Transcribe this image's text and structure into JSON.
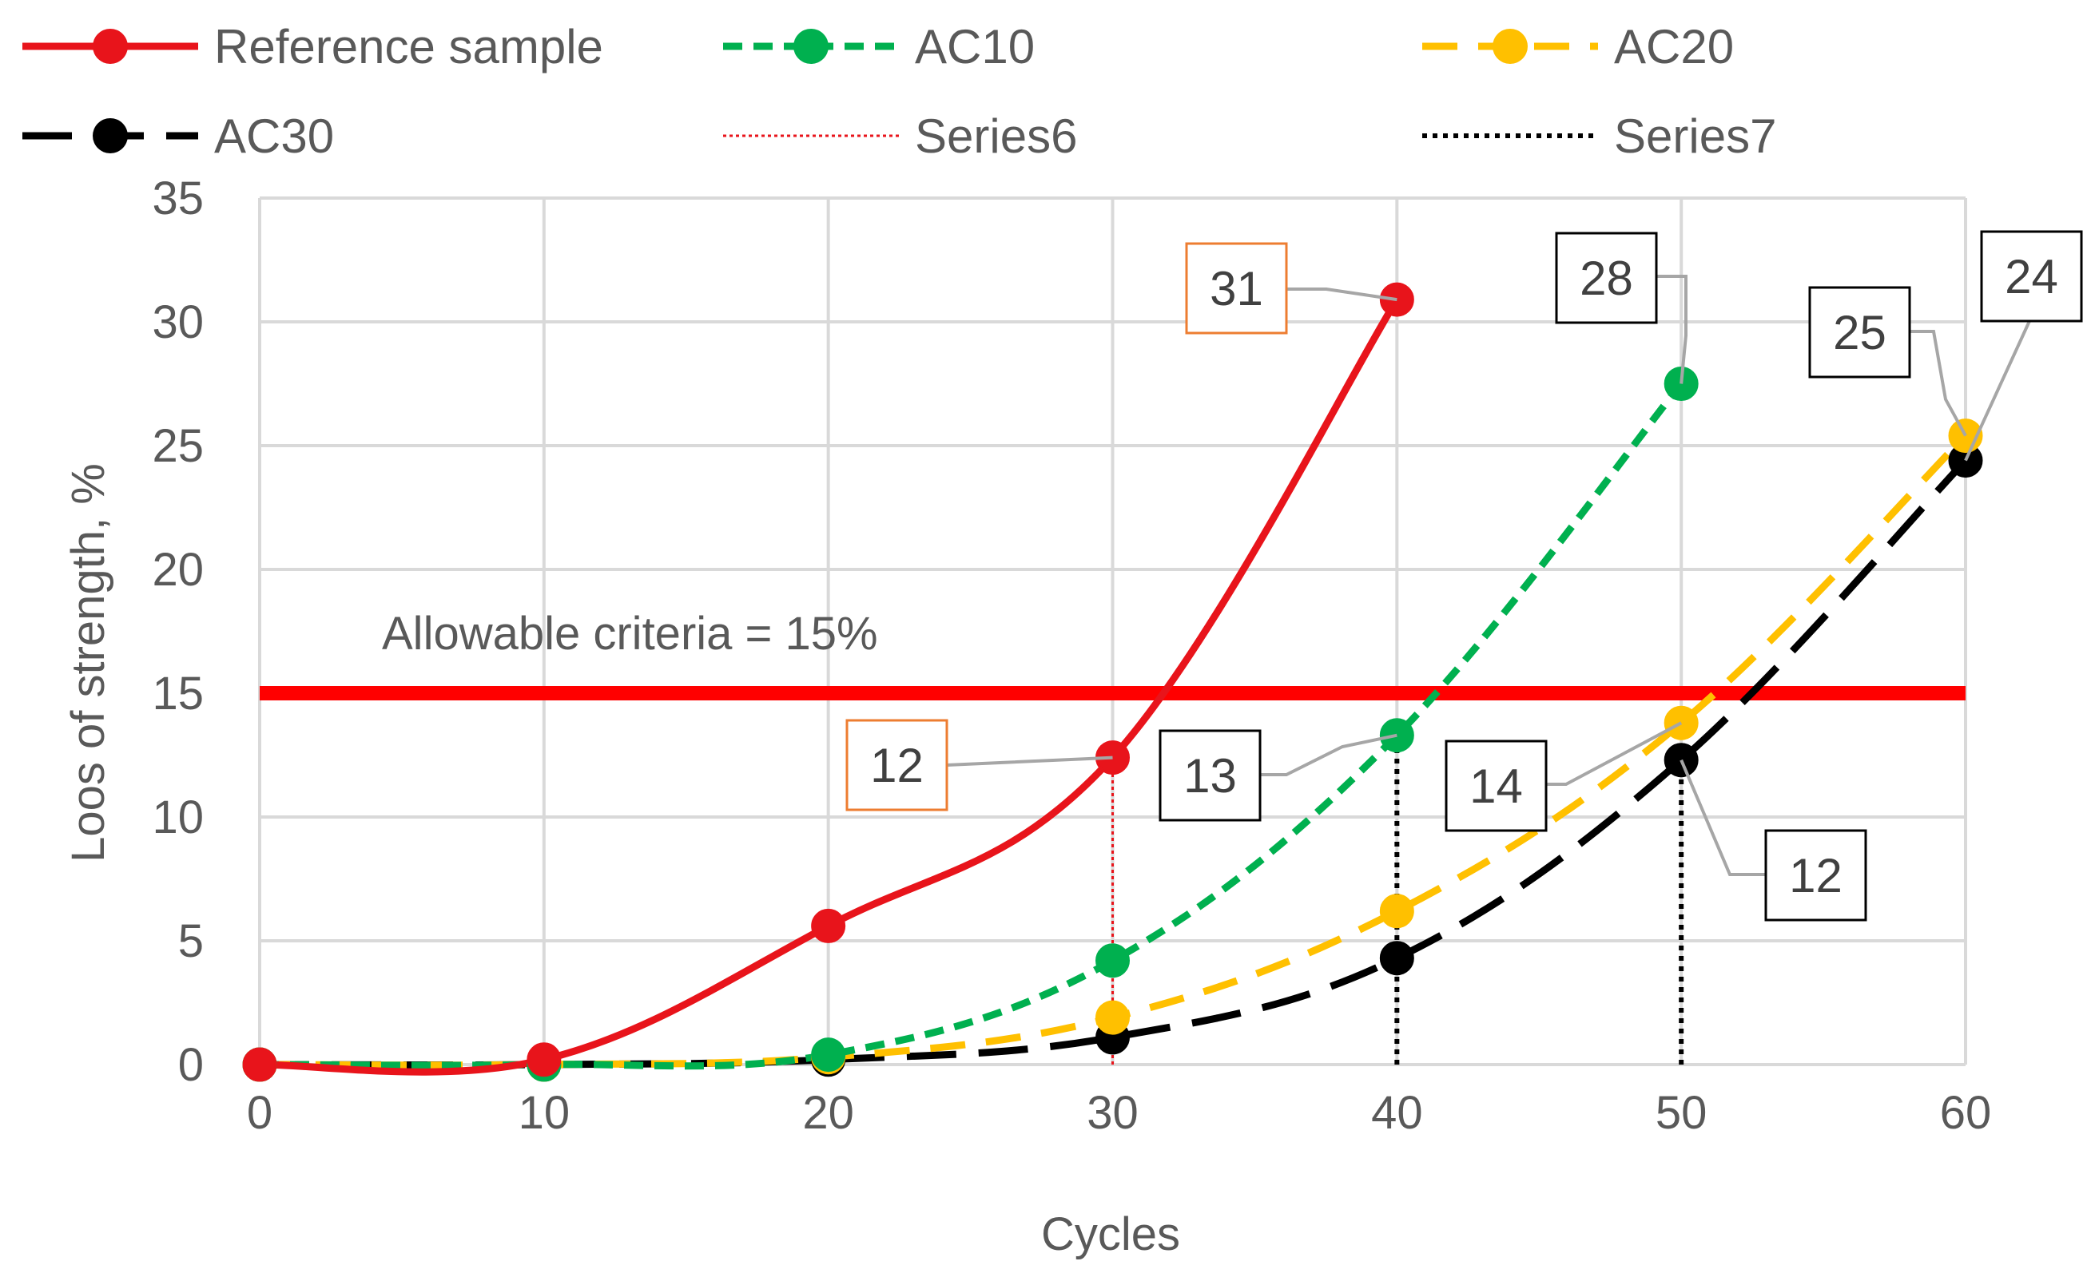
{
  "chart_data": {
    "type": "line",
    "xlabel": "Cycles",
    "ylabel": "Loos of strength, %",
    "xlim": [
      0,
      60
    ],
    "ylim": [
      0,
      35
    ],
    "xticks": [
      0,
      10,
      20,
      30,
      40,
      50,
      60
    ],
    "yticks": [
      0,
      5,
      10,
      15,
      20,
      25,
      30,
      35
    ],
    "grid": true,
    "legend_position": "top",
    "series": [
      {
        "name": "Reference sample",
        "color": "#e8141b",
        "dash": "solid",
        "marker": true,
        "x": [
          0,
          10,
          20,
          30,
          40
        ],
        "values": [
          0,
          0.2,
          5.6,
          12.4,
          30.9
        ]
      },
      {
        "name": "AC10",
        "color": "#00b04f",
        "dash": "short",
        "marker": true,
        "x": [
          0,
          10,
          20,
          30,
          40,
          50
        ],
        "values": [
          0,
          0,
          0.4,
          4.2,
          13.3,
          27.5
        ]
      },
      {
        "name": "AC20",
        "color": "#ffc000",
        "dash": "long",
        "marker": true,
        "x": [
          0,
          10,
          20,
          30,
          40,
          50,
          60
        ],
        "values": [
          0,
          0,
          0.3,
          1.9,
          6.2,
          13.8,
          25.4
        ]
      },
      {
        "name": "AC30",
        "color": "#000000",
        "dash": "longest",
        "marker": true,
        "x": [
          0,
          10,
          20,
          30,
          40,
          50,
          60
        ],
        "values": [
          0,
          0,
          0.2,
          1.1,
          4.3,
          12.3,
          24.4
        ]
      },
      {
        "name": "Series6",
        "color": "#e8141b",
        "dash": "dotted",
        "marker": false,
        "x": [
          30,
          30
        ],
        "values": [
          0,
          12.4
        ]
      },
      {
        "name": "Series7",
        "color": "#000000",
        "dash": "dotted",
        "marker": false,
        "segments": [
          {
            "x": [
              40,
              40
            ],
            "values": [
              0,
              13.3
            ]
          },
          {
            "x": [
              50,
              50
            ],
            "values": [
              0,
              12.3
            ]
          }
        ]
      }
    ],
    "threshold": {
      "value": 15,
      "label": "Allowable criteria = 15%",
      "color": "#ff0000"
    },
    "annotations": [
      {
        "text": "31",
        "point": [
          40,
          30.9
        ],
        "border": "#ed7d31"
      },
      {
        "text": "12",
        "point": [
          30,
          12.4
        ],
        "border": "#ed7d31"
      },
      {
        "text": "28",
        "point": [
          50,
          27.5
        ],
        "border": "#000000"
      },
      {
        "text": "13",
        "point": [
          40,
          13.3
        ],
        "border": "#000000"
      },
      {
        "text": "14",
        "point": [
          50,
          13.8
        ],
        "border": "#000000"
      },
      {
        "text": "12",
        "point": [
          50,
          12.3
        ],
        "border": "#000000"
      },
      {
        "text": "25",
        "point": [
          60,
          25.4
        ],
        "border": "#000000"
      },
      {
        "text": "24",
        "point": [
          60,
          24.4
        ],
        "border": "#000000"
      }
    ]
  }
}
